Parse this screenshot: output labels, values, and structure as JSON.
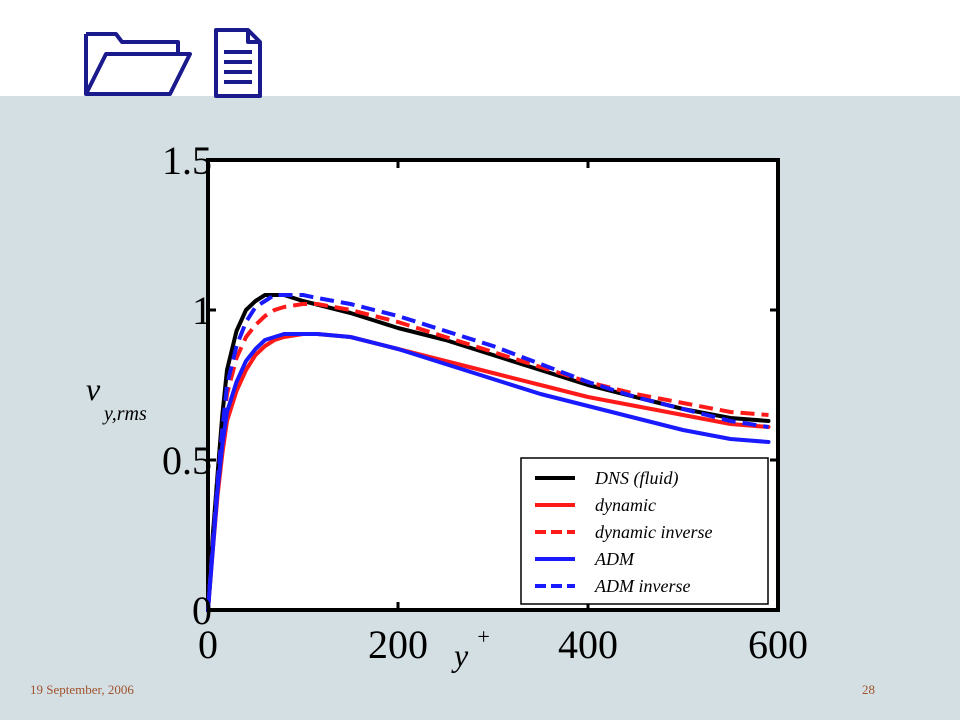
{
  "footer": {
    "date": "19 September, 2006",
    "page": "28"
  },
  "header": {
    "icons": [
      "folder-icon",
      "document-icon"
    ]
  },
  "colors": {
    "background_band": "#d4dfe3",
    "footer_text": "#a0522d",
    "icon_stroke": "#1a1a8c"
  },
  "chart_data": {
    "type": "line",
    "xlabel": "y",
    "xlabel_superscript": "+",
    "ylabel": "v",
    "ylabel_subscript": "y,rms",
    "xlim": [
      0,
      600
    ],
    "ylim": [
      0,
      1.5
    ],
    "x_ticks": [
      "0",
      "200",
      "400",
      "600"
    ],
    "y_ticks": [
      "0",
      "0.5",
      "1",
      "1.5"
    ],
    "legend_position": "bottom-right",
    "series": [
      {
        "name": "DNS (fluid)",
        "color": "#000000",
        "dash": "solid",
        "x": [
          0,
          5,
          10,
          15,
          20,
          30,
          40,
          50,
          60,
          70,
          80,
          90,
          100,
          125,
          150,
          200,
          250,
          300,
          350,
          400,
          450,
          500,
          550,
          590
        ],
        "y": [
          0.0,
          0.25,
          0.45,
          0.65,
          0.8,
          0.93,
          1.0,
          1.03,
          1.05,
          1.05,
          1.05,
          1.04,
          1.03,
          1.01,
          0.99,
          0.94,
          0.9,
          0.85,
          0.8,
          0.75,
          0.71,
          0.67,
          0.64,
          0.63
        ]
      },
      {
        "name": "dynamic",
        "color": "#ff1a1a",
        "dash": "solid",
        "x": [
          0,
          5,
          10,
          15,
          20,
          30,
          40,
          50,
          60,
          70,
          80,
          90,
          100,
          115,
          150,
          200,
          250,
          300,
          350,
          400,
          450,
          500,
          550,
          590
        ],
        "y": [
          0.0,
          0.2,
          0.38,
          0.52,
          0.63,
          0.73,
          0.8,
          0.85,
          0.88,
          0.9,
          0.91,
          0.915,
          0.92,
          0.92,
          0.91,
          0.87,
          0.83,
          0.79,
          0.75,
          0.71,
          0.68,
          0.65,
          0.62,
          0.61
        ]
      },
      {
        "name": "dynamic inverse",
        "color": "#ff1a1a",
        "dash": "dashed",
        "x": [
          0,
          5,
          10,
          15,
          20,
          30,
          40,
          50,
          60,
          70,
          80,
          90,
          100,
          115,
          150,
          200,
          250,
          300,
          350,
          400,
          450,
          500,
          550,
          590
        ],
        "y": [
          0.0,
          0.22,
          0.42,
          0.6,
          0.72,
          0.84,
          0.91,
          0.95,
          0.98,
          1.0,
          1.01,
          1.015,
          1.02,
          1.02,
          1.0,
          0.96,
          0.91,
          0.86,
          0.81,
          0.76,
          0.72,
          0.69,
          0.66,
          0.65
        ]
      },
      {
        "name": "ADM",
        "color": "#1a1aff",
        "dash": "solid",
        "x": [
          0,
          5,
          10,
          15,
          20,
          30,
          40,
          50,
          60,
          70,
          80,
          90,
          100,
          115,
          150,
          200,
          250,
          300,
          350,
          400,
          450,
          500,
          550,
          590
        ],
        "y": [
          0.0,
          0.2,
          0.4,
          0.55,
          0.66,
          0.76,
          0.83,
          0.87,
          0.9,
          0.91,
          0.92,
          0.92,
          0.92,
          0.92,
          0.91,
          0.87,
          0.82,
          0.77,
          0.72,
          0.68,
          0.64,
          0.6,
          0.57,
          0.56
        ]
      },
      {
        "name": "ADM inverse",
        "color": "#1a1aff",
        "dash": "dashed",
        "x": [
          0,
          5,
          10,
          15,
          20,
          30,
          40,
          50,
          60,
          70,
          80,
          90,
          100,
          115,
          150,
          200,
          250,
          300,
          350,
          400,
          450,
          500,
          550,
          590
        ],
        "y": [
          0.0,
          0.22,
          0.42,
          0.6,
          0.75,
          0.88,
          0.96,
          1.01,
          1.03,
          1.05,
          1.05,
          1.05,
          1.05,
          1.04,
          1.02,
          0.98,
          0.93,
          0.88,
          0.82,
          0.76,
          0.71,
          0.67,
          0.63,
          0.61
        ]
      }
    ]
  }
}
